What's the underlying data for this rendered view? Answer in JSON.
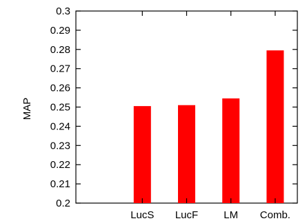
{
  "chart_data": {
    "type": "bar",
    "title": "",
    "xlabel": "",
    "ylabel": "MAP",
    "categories": [
      "LucS",
      "LucF",
      "LM",
      "Comb."
    ],
    "values": [
      0.2505,
      0.251,
      0.2545,
      0.2795
    ],
    "ylim": [
      0.2,
      0.3
    ],
    "yticks": [
      "0.2",
      "0.21",
      "0.22",
      "0.23",
      "0.24",
      "0.25",
      "0.26",
      "0.27",
      "0.28",
      "0.29",
      "0.3"
    ],
    "bar_color": "#ff0000",
    "grid": false,
    "legend": false
  }
}
